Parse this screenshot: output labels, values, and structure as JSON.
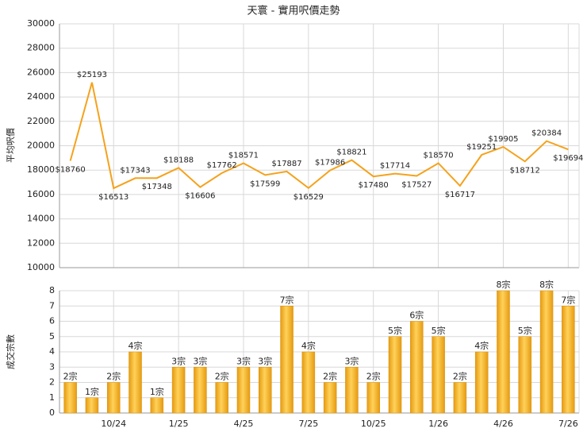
{
  "chart_data": [
    {
      "type": "line",
      "title": "天寰 - 實用呎價走勢",
      "y_label": "平均呎價",
      "color": "#f5a21b",
      "values": [
        18760,
        25193,
        16513,
        17343,
        17348,
        18188,
        16606,
        17762,
        18571,
        17599,
        17887,
        16529,
        17986,
        18821,
        17480,
        17714,
        17527,
        18570,
        16717,
        19251,
        19905,
        18712,
        20384,
        19694
      ],
      "value_labels": [
        "$18760",
        "$25193",
        "$16513",
        "$17343",
        "$17348",
        "$18188",
        "$16606",
        "$17762",
        "$18571",
        "$17599",
        "$17887",
        "$16529",
        "$17986",
        "$18821",
        "$17480",
        "$17714",
        "$17527",
        "$18570",
        "$16717",
        "$19251",
        "$19905",
        "$18712",
        "$20384",
        "$19694"
      ],
      "ylim": [
        10000,
        30000
      ],
      "yticks": [
        10000,
        12000,
        14000,
        16000,
        18000,
        20000,
        22000,
        24000,
        26000,
        28000,
        30000
      ],
      "grid": true
    },
    {
      "type": "bar",
      "y_label": "成交宗數",
      "color": "#f0a81c",
      "categories": [
        null,
        null,
        "10/24",
        null,
        null,
        "1/25",
        null,
        null,
        "4/25",
        null,
        null,
        "7/25",
        null,
        null,
        "10/25",
        null,
        null,
        "1/26",
        null,
        null,
        "4/26",
        null,
        null,
        "7/26"
      ],
      "values": [
        2,
        1,
        2,
        4,
        1,
        3,
        3,
        2,
        3,
        3,
        7,
        4,
        2,
        3,
        2,
        5,
        6,
        5,
        2,
        4,
        8,
        5,
        8,
        7
      ],
      "value_labels": [
        "2宗",
        "1宗",
        "2宗",
        "4宗",
        "1宗",
        "3宗",
        "3宗",
        "2宗",
        "3宗",
        "3宗",
        "7宗",
        "4宗",
        "2宗",
        "3宗",
        "2宗",
        "5宗",
        "6宗",
        "5宗",
        "2宗",
        "4宗",
        "8宗",
        "5宗",
        "8宗",
        "7宗"
      ],
      "ylim": [
        0,
        8
      ],
      "yticks": [
        0,
        1,
        2,
        3,
        4,
        5,
        6,
        7,
        8
      ],
      "grid": true
    }
  ]
}
